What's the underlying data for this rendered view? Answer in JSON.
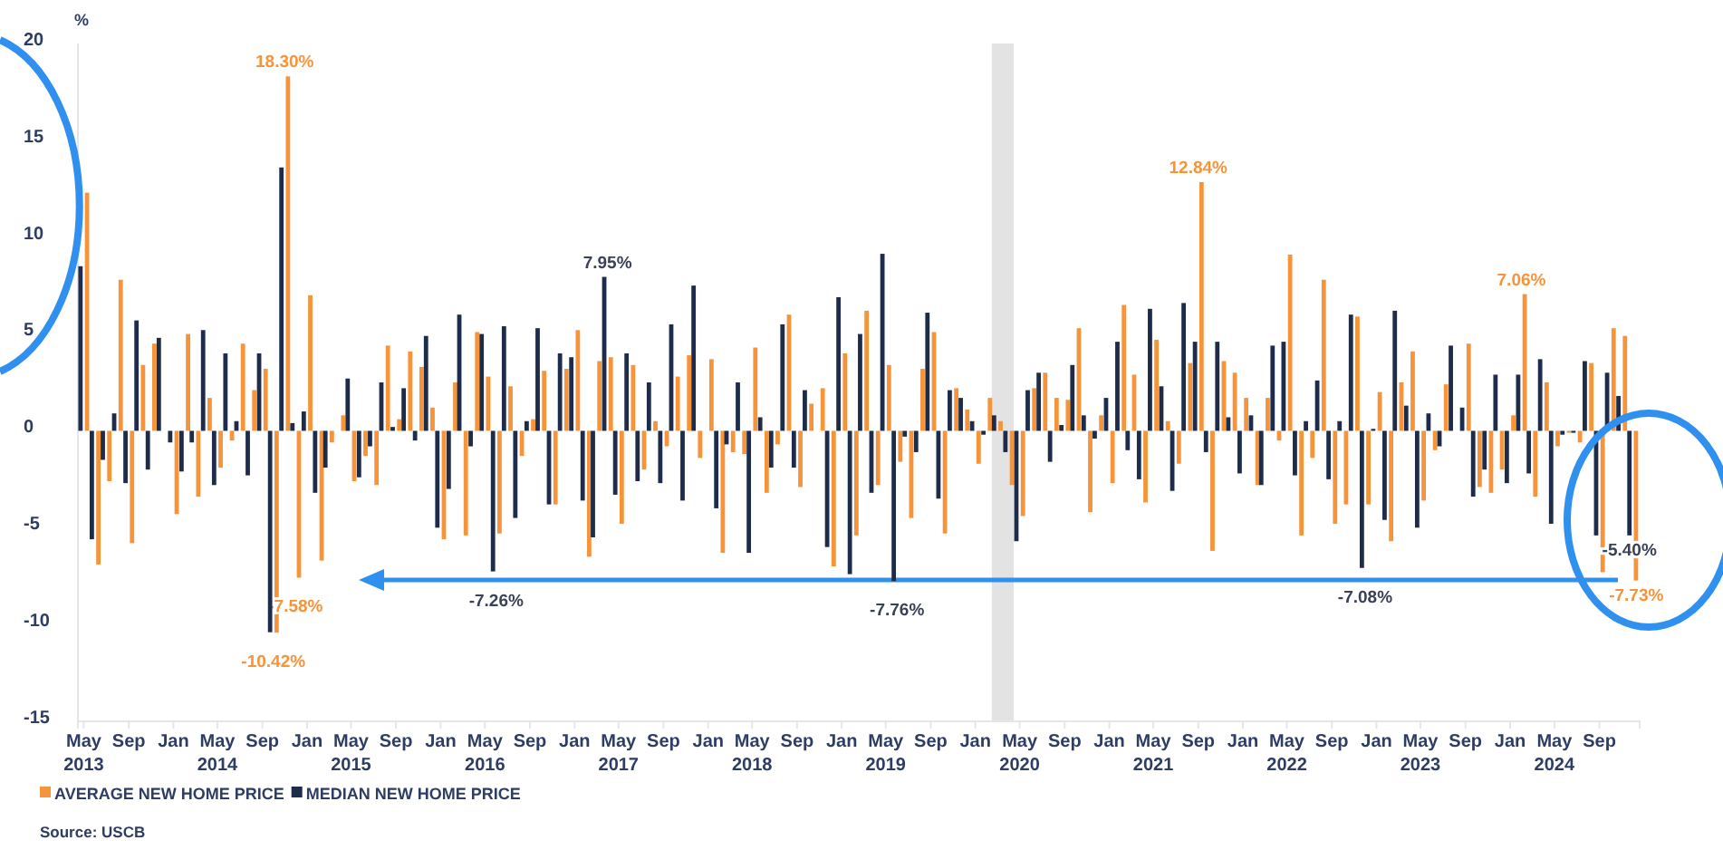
{
  "chart_data": {
    "type": "bar",
    "ylabel": "%",
    "x": [
      "2013-05",
      "2013-06",
      "2013-07",
      "2013-08",
      "2013-09",
      "2013-10",
      "2013-11",
      "2013-12",
      "2014-01",
      "2014-02",
      "2014-03",
      "2014-04",
      "2014-05",
      "2014-06",
      "2014-07",
      "2014-08",
      "2014-09",
      "2014-10",
      "2014-11",
      "2014-12",
      "2015-01",
      "2015-02",
      "2015-03",
      "2015-04",
      "2015-05",
      "2015-06",
      "2015-07",
      "2015-08",
      "2015-09",
      "2015-10",
      "2015-11",
      "2015-12",
      "2016-01",
      "2016-02",
      "2016-03",
      "2016-04",
      "2016-05",
      "2016-06",
      "2016-07",
      "2016-08",
      "2016-09",
      "2016-10",
      "2016-11",
      "2016-12",
      "2017-01",
      "2017-02",
      "2017-03",
      "2017-04",
      "2017-05",
      "2017-06",
      "2017-07",
      "2017-08",
      "2017-09",
      "2017-10",
      "2017-11",
      "2017-12",
      "2018-01",
      "2018-02",
      "2018-03",
      "2018-04",
      "2018-05",
      "2018-06",
      "2018-07",
      "2018-08",
      "2018-09",
      "2018-10",
      "2018-11",
      "2018-12",
      "2019-01",
      "2019-02",
      "2019-03",
      "2019-04",
      "2019-05",
      "2019-06",
      "2019-07",
      "2019-08",
      "2019-09",
      "2019-10",
      "2019-11",
      "2019-12",
      "2020-01",
      "2020-02",
      "2020-03",
      "2020-04",
      "2020-05",
      "2020-06",
      "2020-07",
      "2020-08",
      "2020-09",
      "2020-10",
      "2020-11",
      "2020-12",
      "2021-01",
      "2021-02",
      "2021-03",
      "2021-04",
      "2021-05",
      "2021-06",
      "2021-07",
      "2021-08",
      "2021-09",
      "2021-10",
      "2021-11",
      "2021-12",
      "2022-01",
      "2022-02",
      "2022-03",
      "2022-04",
      "2022-05",
      "2022-06",
      "2022-07",
      "2022-08",
      "2022-09",
      "2022-10",
      "2022-11",
      "2022-12",
      "2023-01",
      "2023-02",
      "2023-03",
      "2023-04",
      "2023-05",
      "2023-06",
      "2023-07",
      "2023-08",
      "2023-09",
      "2023-10",
      "2023-11",
      "2023-12",
      "2024-01",
      "2024-02",
      "2024-03",
      "2024-04",
      "2024-05",
      "2024-06",
      "2024-07",
      "2024-08",
      "2024-09",
      "2024-10",
      "2024-11",
      "2024-12"
    ],
    "series": [
      {
        "name": "AVERAGE NEW HOME PRICE",
        "color": "#f5943a",
        "values": [
          12.3,
          -6.9,
          -2.6,
          7.8,
          -5.8,
          3.4,
          4.5,
          0,
          -4.3,
          5.0,
          -3.4,
          1.7,
          -1.9,
          -0.5,
          4.5,
          2.1,
          3.2,
          -10.42,
          18.3,
          -7.58,
          7.0,
          -6.7,
          -0.6,
          0.8,
          -2.6,
          -1.3,
          -2.8,
          4.4,
          0.6,
          4.1,
          3.3,
          1.2,
          -5.6,
          2.5,
          -5.4,
          5.1,
          2.8,
          -5.3,
          2.3,
          -1.3,
          0.6,
          3.1,
          -3.8,
          3.2,
          5.2,
          -6.5,
          3.6,
          3.8,
          -4.8,
          3.4,
          -2.0,
          0.5,
          -0.8,
          2.8,
          3.9,
          -1.4,
          3.7,
          -6.3,
          -1.1,
          -1.2,
          4.3,
          -3.2,
          -0.7,
          6.0,
          -2.9,
          1.4,
          2.2,
          -7.0,
          4.0,
          -5.4,
          6.2,
          -2.8,
          3.4,
          -1.6,
          -4.5,
          3.2,
          5.1,
          -5.3,
          2.2,
          1.1,
          -1.7,
          1.7,
          0.5,
          -2.8,
          -4.4,
          2.2,
          3.0,
          1.7,
          1.6,
          5.3,
          -4.2,
          0.8,
          -2.7,
          6.5,
          2.9,
          -3.7,
          4.7,
          0.5,
          -1.7,
          3.5,
          12.84,
          -6.2,
          3.6,
          3.0,
          1.7,
          -2.8,
          1.7,
          -0.5,
          9.1,
          -5.4,
          -1.4,
          7.8,
          -4.8,
          -3.8,
          5.9,
          -3.8,
          2.0,
          -5.7,
          2.5,
          4.1,
          -3.6,
          -1.0,
          2.4,
          0,
          4.5,
          -2.9,
          -3.2,
          -2.0,
          0.8,
          7.06,
          -3.4,
          2.5,
          -0.8,
          -0.1,
          -0.6,
          3.5,
          -7.3,
          5.3,
          4.9,
          -7.73
        ],
        "value_labels": [
          null,
          null,
          null,
          null,
          null,
          null,
          null,
          null,
          null,
          null,
          null,
          null,
          null,
          null,
          null,
          null,
          null,
          "-10.42%",
          "18.30%",
          "-7.58%",
          null,
          null,
          null,
          null,
          null,
          null,
          null,
          null,
          null,
          null,
          null,
          null,
          null,
          null,
          null,
          null,
          null,
          null,
          null,
          null,
          null,
          null,
          null,
          null,
          null,
          null,
          null,
          null,
          null,
          null,
          null,
          null,
          null,
          null,
          null,
          null,
          null,
          null,
          null,
          null,
          null,
          null,
          null,
          null,
          null,
          null,
          null,
          null,
          null,
          null,
          null,
          null,
          null,
          null,
          null,
          null,
          null,
          null,
          null,
          null,
          null,
          null,
          null,
          null,
          null,
          null,
          null,
          null,
          null,
          null,
          null,
          null,
          null,
          null,
          null,
          null,
          null,
          null,
          null,
          null,
          "12.84%",
          null,
          null,
          null,
          null,
          null,
          null,
          null,
          null,
          null,
          null,
          null,
          null,
          null,
          null,
          null,
          null,
          null,
          null,
          null,
          null,
          null,
          null,
          null,
          null,
          null,
          null,
          null,
          null,
          "7.06%",
          null,
          null,
          null,
          null,
          null,
          null,
          null,
          null,
          null,
          "-7.73%"
        ]
      },
      {
        "name": "MEDIAN NEW HOME PRICE",
        "color": "#1d2c4b",
        "values": [
          8.5,
          -5.6,
          -1.5,
          0.9,
          -2.7,
          5.7,
          -2.0,
          4.8,
          -0.6,
          -2.1,
          -0.6,
          5.2,
          -2.8,
          4.0,
          0.5,
          -2.3,
          4.0,
          -10.4,
          13.6,
          0.4,
          1.0,
          -3.2,
          -1.9,
          0,
          2.7,
          -2.4,
          -0.8,
          2.5,
          0.2,
          2.2,
          -0.5,
          4.9,
          -5.0,
          -3.0,
          6.0,
          -0.8,
          5.0,
          -7.26,
          5.4,
          -4.5,
          0.5,
          5.3,
          -3.8,
          4.0,
          3.8,
          -3.6,
          -5.5,
          7.95,
          -3.3,
          4.0,
          -2.6,
          2.5,
          -2.7,
          5.5,
          -3.6,
          7.5,
          0,
          -4.0,
          -0.7,
          2.5,
          -6.3,
          0.7,
          -1.9,
          5.5,
          -1.9,
          2.1,
          0,
          -6.0,
          6.9,
          -7.4,
          5.0,
          -3.2,
          9.14,
          -7.76,
          -0.3,
          -1.1,
          6.1,
          -3.5,
          2.1,
          1.7,
          0.5,
          -0.2,
          0.8,
          -1.1,
          -5.7,
          2.1,
          3.0,
          -1.6,
          0.3,
          3.4,
          0.8,
          -0.4,
          1.7,
          4.6,
          -1.0,
          -2.5,
          6.3,
          2.3,
          -3.1,
          6.6,
          4.6,
          -1.1,
          4.6,
          0.7,
          -2.2,
          0.8,
          -2.8,
          4.4,
          4.6,
          -2.3,
          0.5,
          2.6,
          -2.5,
          0.5,
          6.0,
          -7.08,
          0.1,
          -4.6,
          6.2,
          1.3,
          -5.0,
          0.9,
          -0.8,
          4.4,
          1.2,
          -3.4,
          -2.0,
          2.9,
          -2.7,
          2.9,
          -2.2,
          3.7,
          -4.8,
          -0.2,
          -0.1,
          3.6,
          -5.4,
          3.0,
          1.8,
          -5.4
        ],
        "value_labels": [
          null,
          null,
          null,
          null,
          null,
          null,
          null,
          null,
          null,
          null,
          null,
          null,
          null,
          null,
          null,
          null,
          null,
          null,
          null,
          null,
          null,
          null,
          null,
          null,
          null,
          null,
          null,
          null,
          null,
          null,
          null,
          null,
          null,
          null,
          null,
          null,
          null,
          "-7.26%",
          null,
          null,
          null,
          null,
          null,
          null,
          null,
          null,
          null,
          "7.95%",
          null,
          null,
          null,
          null,
          null,
          null,
          null,
          null,
          null,
          null,
          null,
          null,
          null,
          null,
          null,
          null,
          null,
          null,
          null,
          null,
          null,
          null,
          null,
          null,
          null,
          "-7.76%",
          null,
          null,
          null,
          null,
          null,
          null,
          null,
          null,
          null,
          null,
          null,
          null,
          null,
          null,
          null,
          null,
          null,
          null,
          null,
          null,
          null,
          null,
          null,
          null,
          null,
          null,
          null,
          null,
          null,
          null,
          null,
          null,
          null,
          null,
          null,
          null,
          null,
          null,
          null,
          null,
          null,
          "-7.08%",
          null,
          null,
          null,
          null,
          null,
          null,
          null,
          null,
          null,
          null,
          null,
          null,
          null,
          null,
          null,
          null,
          null,
          null,
          null,
          null,
          null,
          null,
          null,
          "-5.40%"
        ]
      }
    ],
    "xlim": [
      "2013-04-15",
      "2024-12-20"
    ],
    "xticks": [
      {
        "value": "2013-05",
        "label": "May\n2013"
      },
      {
        "value": "2013-09",
        "label": "Sep"
      },
      {
        "value": "2014-01",
        "label": "Jan"
      },
      {
        "value": "2014-05",
        "label": "May\n2014"
      },
      {
        "value": "2014-09",
        "label": "Sep"
      },
      {
        "value": "2015-01",
        "label": "Jan"
      },
      {
        "value": "2015-05",
        "label": "May\n2015"
      },
      {
        "value": "2015-09",
        "label": "Sep"
      },
      {
        "value": "2016-01",
        "label": "Jan"
      },
      {
        "value": "2016-05",
        "label": "May\n2016"
      },
      {
        "value": "2016-09",
        "label": "Sep"
      },
      {
        "value": "2017-01",
        "label": "Jan"
      },
      {
        "value": "2017-05",
        "label": "May\n2017"
      },
      {
        "value": "2017-09",
        "label": "Sep"
      },
      {
        "value": "2018-01",
        "label": "Jan"
      },
      {
        "value": "2018-05",
        "label": "May\n2018"
      },
      {
        "value": "2018-09",
        "label": "Sep"
      },
      {
        "value": "2019-01",
        "label": "Jan"
      },
      {
        "value": "2019-05",
        "label": "May\n2019"
      },
      {
        "value": "2019-09",
        "label": "Sep"
      },
      {
        "value": "2020-01",
        "label": "Jan"
      },
      {
        "value": "2020-05",
        "label": "May\n2020"
      },
      {
        "value": "2020-09",
        "label": "Sep"
      },
      {
        "value": "2021-01",
        "label": "Jan"
      },
      {
        "value": "2021-05",
        "label": "May\n2021"
      },
      {
        "value": "2021-09",
        "label": "Sep"
      },
      {
        "value": "2022-01",
        "label": "Jan"
      },
      {
        "value": "2022-05",
        "label": "May\n2022"
      },
      {
        "value": "2022-09",
        "label": "Sep"
      },
      {
        "value": "2023-01",
        "label": "Jan"
      },
      {
        "value": "2023-05",
        "label": "May\n2023"
      },
      {
        "value": "2023-09",
        "label": "Sep"
      },
      {
        "value": "2024-01",
        "label": "Jan"
      },
      {
        "value": "2024-05",
        "label": "May\n2024"
      },
      {
        "value": "2024-09",
        "label": "Sep"
      }
    ],
    "ylim": [
      -15,
      20
    ],
    "yticks": [
      -15,
      -10,
      -5,
      0,
      5,
      10,
      15,
      20
    ],
    "bands": [
      {
        "axis": "x",
        "from": "2020-02-15",
        "to": "2020-04-15",
        "color": "#e3e3e3"
      }
    ],
    "legend": "bottom",
    "annotations": [
      "Source: USCB"
    ]
  }
}
